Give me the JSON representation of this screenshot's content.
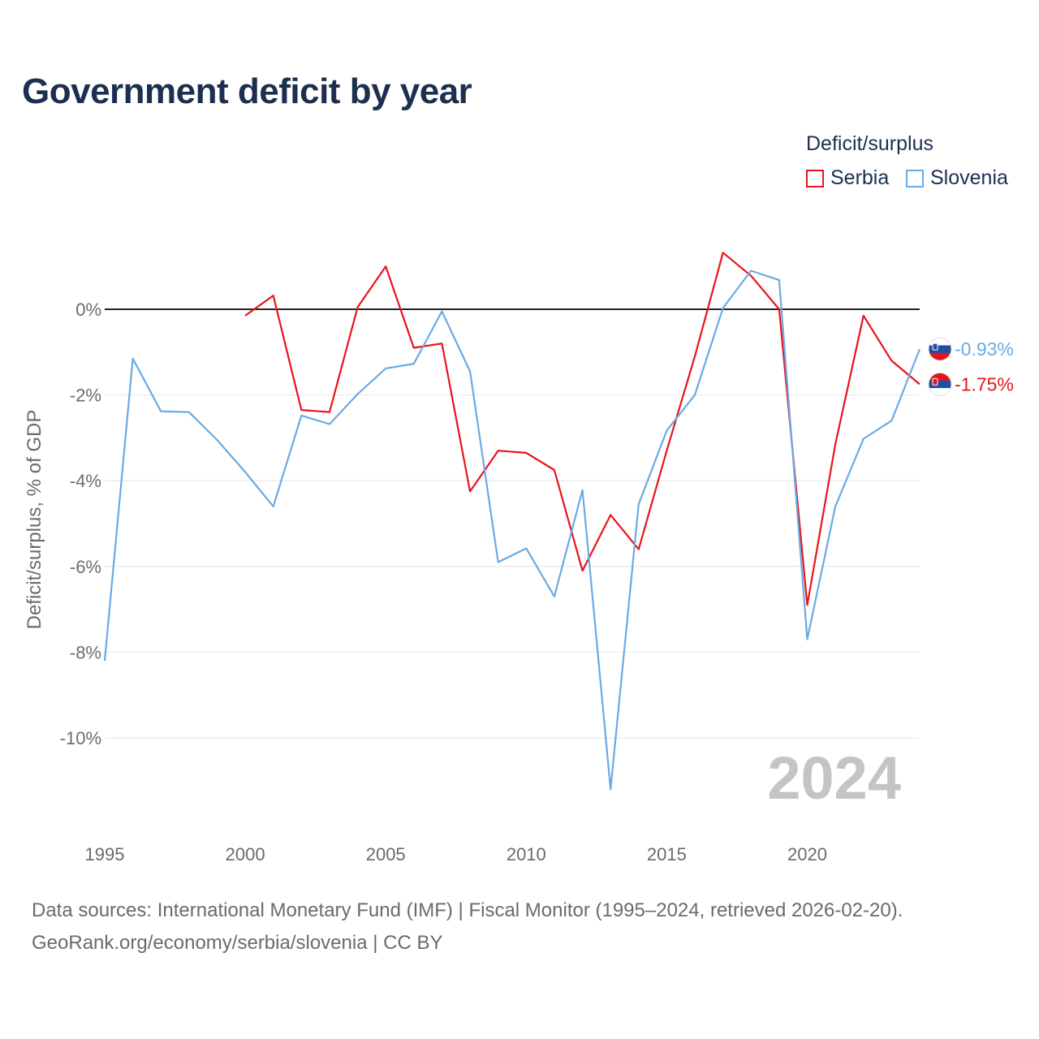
{
  "chart_data": {
    "type": "line",
    "title": "Government deficit by year",
    "ylabel": "Deficit/surplus, % of GDP",
    "xlabel": "",
    "xlim": [
      1995,
      2024
    ],
    "ylim": [
      -12,
      2
    ],
    "xticks": [
      1995,
      2000,
      2005,
      2010,
      2015,
      2020
    ],
    "xtick_labels": [
      "1995",
      "2000",
      "2005",
      "2010",
      "2015",
      "2020"
    ],
    "yticks": [
      0,
      -2,
      -4,
      -6,
      -8,
      -10
    ],
    "ytick_labels": [
      "0%",
      "-2%",
      "-4%",
      "-6%",
      "-8%",
      "-10%"
    ],
    "legend_title": "Deficit/surplus",
    "year_watermark": "2024",
    "series": [
      {
        "name": "Serbia",
        "color": "#e8131b",
        "x": [
          2000,
          2001,
          2002,
          2003,
          2004,
          2005,
          2006,
          2007,
          2008,
          2009,
          2010,
          2011,
          2012,
          2013,
          2014,
          2015,
          2016,
          2017,
          2018,
          2019,
          2020,
          2021,
          2022,
          2023,
          2024
        ],
        "y": [
          -0.15,
          0.32,
          -2.35,
          -2.4,
          0.05,
          1.0,
          -0.9,
          -0.8,
          -4.25,
          -3.3,
          -3.35,
          -3.75,
          -6.1,
          -4.8,
          -5.6,
          -3.3,
          -1.1,
          1.32,
          0.78,
          0.0,
          -6.9,
          -3.15,
          -0.15,
          -1.2,
          -1.75
        ],
        "end_label": "-1.75%",
        "flag_icon": "serbia-flag-icon"
      },
      {
        "name": "Slovenia",
        "color": "#6aaae4",
        "x": [
          1995,
          1996,
          1997,
          1998,
          1999,
          2000,
          2001,
          2002,
          2003,
          2004,
          2005,
          2006,
          2007,
          2008,
          2009,
          2010,
          2011,
          2012,
          2013,
          2014,
          2015,
          2016,
          2017,
          2018,
          2019,
          2020,
          2021,
          2022,
          2023,
          2024
        ],
        "y": [
          -8.2,
          -1.15,
          -2.38,
          -2.4,
          -3.05,
          -3.8,
          -4.6,
          -2.48,
          -2.68,
          -1.98,
          -1.38,
          -1.27,
          -0.05,
          -1.45,
          -5.9,
          -5.58,
          -6.7,
          -4.22,
          -11.2,
          -4.55,
          -2.83,
          -2.0,
          0.03,
          0.9,
          0.68,
          -7.7,
          -4.6,
          -3.02,
          -2.6,
          -0.93
        ],
        "end_label": "-0.93%",
        "flag_icon": "slovenia-flag-icon"
      }
    ]
  },
  "footer": {
    "line1": "Data sources: International Monetary Fund (IMF) | Fiscal Monitor (1995–2024, retrieved 2026-02-20).",
    "line2": "GeoRank.org/economy/serbia/slovenia | CC BY"
  }
}
